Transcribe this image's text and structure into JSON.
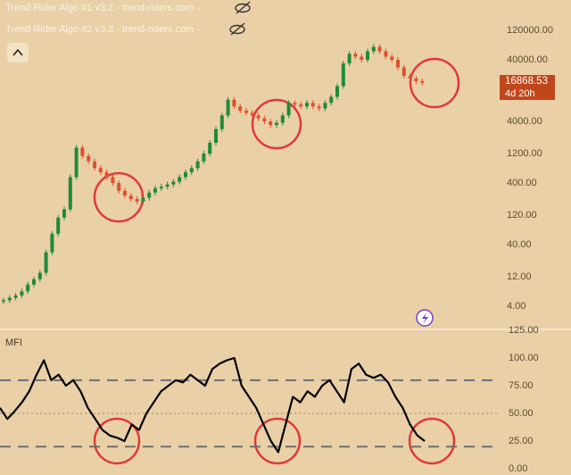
{
  "chart_data": [
    {
      "type": "candlestick",
      "legend_lines": [
        "Trend Rider Algo #1 v3.2 - trend-riders.com -",
        "Trend Rider Algo #2 v3.3 - trend-riders.com -"
      ],
      "log_scale": true,
      "up_color": "#1f8a3c",
      "down_color": "#e0502c",
      "close": [
        5,
        5.5,
        6,
        7,
        9,
        11,
        14,
        30,
        60,
        110,
        150,
        500,
        1500,
        1100,
        900,
        700,
        600,
        500,
        400,
        300,
        250,
        220,
        200,
        230,
        280,
        330,
        350,
        380,
        420,
        500,
        600,
        700,
        900,
        1200,
        1800,
        3000,
        5000,
        9000,
        7000,
        6000,
        5500,
        5000,
        4500,
        4000,
        3500,
        3800,
        5000,
        8000,
        7500,
        7000,
        8000,
        7000,
        6500,
        8000,
        10000,
        15000,
        35000,
        50000,
        45000,
        40000,
        55000,
        65000,
        55000,
        45000,
        40000,
        30000,
        22000,
        20000,
        18000,
        16868.53
      ],
      "last_price_label": "16868.53",
      "countdown": "4d 20h",
      "ylim": [
        1.74,
        374000
      ],
      "yticks": [
        {
          "value": 4,
          "label": "4.00"
        },
        {
          "value": 12,
          "label": "12.00"
        },
        {
          "value": 40,
          "label": "40.00"
        },
        {
          "value": 120,
          "label": "120.00"
        },
        {
          "value": 400,
          "label": "400.00"
        },
        {
          "value": 1200,
          "label": "1200.00"
        },
        {
          "value": 4000,
          "label": "4000.00"
        },
        {
          "value": 40000,
          "label": "40000.00"
        },
        {
          "value": 120000,
          "label": "120000.00"
        }
      ]
    },
    {
      "type": "line",
      "title": "MFI",
      "color": "#000000",
      "values": [
        55,
        45,
        52,
        60,
        70,
        85,
        98,
        80,
        85,
        75,
        80,
        70,
        55,
        45,
        35,
        30,
        28,
        25,
        40,
        35,
        50,
        60,
        70,
        75,
        80,
        78,
        85,
        80,
        75,
        90,
        95,
        98,
        100,
        75,
        65,
        55,
        40,
        25,
        15,
        40,
        65,
        60,
        70,
        65,
        75,
        80,
        70,
        60,
        90,
        95,
        85,
        82,
        85,
        78,
        65,
        55,
        40,
        30,
        25
      ],
      "bands": [
        80,
        20
      ],
      "midline": 50,
      "ylim": [
        -5.6,
        125
      ],
      "yticks": [
        {
          "value": 0,
          "label": "0.00"
        },
        {
          "value": 25,
          "label": "25.00"
        },
        {
          "value": 50,
          "label": "50.00"
        },
        {
          "value": 75,
          "label": "75.00"
        },
        {
          "value": 100,
          "label": "100.00"
        },
        {
          "value": 125,
          "label": "125.00"
        }
      ]
    }
  ]
}
